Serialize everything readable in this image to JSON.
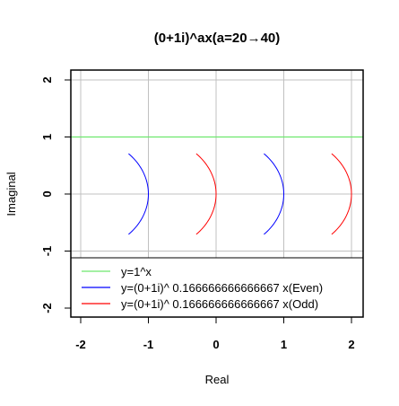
{
  "chart_data": {
    "type": "line",
    "title": "(0+1i)^ax(a=20→40)",
    "xlabel": "Real",
    "ylabel": "Imaginal",
    "xlim": [
      -2.15,
      2.15
    ],
    "ylim": [
      -2.15,
      2.15
    ],
    "xticks": [
      -2,
      -1,
      0,
      1,
      2
    ],
    "yticks": [
      -2,
      -1,
      0,
      1,
      2
    ],
    "xtick_labels": [
      "-2",
      "-1",
      "0",
      "1",
      "2"
    ],
    "ytick_labels": [
      "-2",
      "-1",
      "0",
      "1",
      "2"
    ],
    "grid": true,
    "legend_position": "bottom",
    "colors": {
      "green": "#6ee86e",
      "blue": "#0000ff",
      "red": "#ff0000",
      "grid": "#c0c0c0"
    },
    "series": [
      {
        "name": "y=1^x",
        "color": "#6ee86e",
        "kind": "hline",
        "y": 1
      },
      {
        "name": "y=(0+1i)^ 0.166666666666667 x(Even)",
        "color": "#0000ff",
        "kind": "arcs",
        "arcs": [
          {
            "center": [
              -2,
              0
            ],
            "radius": 1,
            "theta_from": -45,
            "theta_to": 45
          },
          {
            "center": [
              0,
              0
            ],
            "radius": 1,
            "theta_from": -45,
            "theta_to": 45
          }
        ]
      },
      {
        "name": "y=(0+1i)^ 0.166666666666667 x(Odd)",
        "color": "#ff0000",
        "kind": "arcs",
        "arcs": [
          {
            "center": [
              -1,
              0
            ],
            "radius": 1,
            "theta_from": -45,
            "theta_to": 45
          },
          {
            "center": [
              1,
              0
            ],
            "radius": 1,
            "theta_from": -45,
            "theta_to": 45
          }
        ]
      }
    ]
  }
}
